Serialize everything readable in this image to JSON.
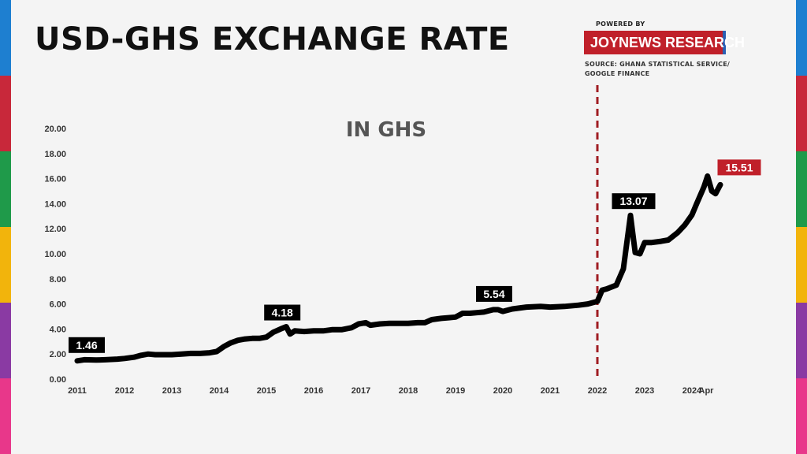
{
  "header": {
    "title": "USD-GHS EXCHANGE RATE",
    "powered_by": "POWERED BY",
    "brand": "JOYNEWS RESEARCH",
    "source_line1": "SOURCE: GHANA STATISTICAL SERVICE/",
    "source_line2": "GOOGLE FINANCE"
  },
  "colors": {
    "background": "#f4f4f4",
    "line": "#000000",
    "accent": "#c0202a",
    "brand_blue": "#2b5fb3",
    "stripes": [
      "#1e7fd0",
      "#c8283a",
      "#1f9a4a",
      "#f2b40c",
      "#8a3aa3",
      "#e8378a"
    ]
  },
  "chart_data": {
    "type": "line",
    "subtitle": "IN GHS",
    "xlabel": "",
    "ylabel": "",
    "x_ticks": [
      "2011",
      "2012",
      "2013",
      "2014",
      "2015",
      "2016",
      "2017",
      "2018",
      "2019",
      "2020",
      "2021",
      "2022",
      "2023",
      "2024",
      "Apr"
    ],
    "y_ticks": [
      "0.00",
      "2.00",
      "4.00",
      "6.00",
      "8.00",
      "10.00",
      "12.00",
      "14.00",
      "16.00",
      "18.00",
      "20.00"
    ],
    "ylim": [
      0,
      20
    ],
    "xlim": [
      2011.0,
      2024.3
    ],
    "grid": false,
    "legend": "none",
    "series": [
      {
        "x": [
          2011.0,
          2011.15,
          2011.4,
          2011.6,
          2011.85,
          2012.0,
          2012.2,
          2012.35,
          2012.5,
          2012.65,
          2012.8,
          2013.0,
          2013.2,
          2013.4,
          2013.6,
          2013.8,
          2013.95,
          2014.1,
          2014.25,
          2014.4,
          2014.55,
          2014.7,
          2014.85,
          2015.0,
          2015.15,
          2015.3,
          2015.42,
          2015.5,
          2015.6,
          2015.8,
          2016.0,
          2016.2,
          2016.4,
          2016.6,
          2016.8,
          2016.95,
          2017.1,
          2017.2,
          2017.4,
          2017.6,
          2017.8,
          2018.0,
          2018.2,
          2018.35,
          2018.5,
          2018.7,
          2018.85,
          2019.0,
          2019.15,
          2019.3,
          2019.45,
          2019.6,
          2019.8,
          2019.9,
          2020.0,
          2020.2,
          2020.5,
          2020.8,
          2021.0,
          2021.3,
          2021.6,
          2021.8,
          2022.0,
          2022.1,
          2022.2,
          2022.4,
          2022.55,
          2022.7,
          2022.8,
          2022.9,
          2023.0,
          2023.15,
          2023.35,
          2023.5,
          2023.7,
          2023.85,
          2024.0,
          2024.1,
          2024.25,
          2024.33,
          2024.42,
          2024.5,
          2024.6
        ],
        "values": [
          1.46,
          1.55,
          1.52,
          1.55,
          1.6,
          1.65,
          1.75,
          1.9,
          2.0,
          1.95,
          1.95,
          1.95,
          2.0,
          2.05,
          2.05,
          2.1,
          2.2,
          2.6,
          2.9,
          3.1,
          3.2,
          3.25,
          3.25,
          3.35,
          3.75,
          4.0,
          4.18,
          3.6,
          3.85,
          3.8,
          3.85,
          3.85,
          3.95,
          3.95,
          4.1,
          4.4,
          4.5,
          4.3,
          4.4,
          4.45,
          4.45,
          4.45,
          4.5,
          4.5,
          4.75,
          4.85,
          4.9,
          4.95,
          5.25,
          5.25,
          5.3,
          5.35,
          5.54,
          5.54,
          5.4,
          5.6,
          5.75,
          5.8,
          5.75,
          5.8,
          5.9,
          6.0,
          6.2,
          7.1,
          7.2,
          7.5,
          8.8,
          13.07,
          10.1,
          10.0,
          10.9,
          10.9,
          11.0,
          11.1,
          11.7,
          12.3,
          13.1,
          14.0,
          15.3,
          16.2,
          15.0,
          14.8,
          15.51
        ]
      }
    ],
    "annotations": [
      {
        "text": "1.46",
        "x": 2011.0,
        "y": 1.46,
        "style": "black"
      },
      {
        "text": "4.18",
        "x": 2015.42,
        "y": 4.18,
        "style": "black"
      },
      {
        "text": "5.54",
        "x": 2019.85,
        "y": 5.54,
        "style": "black"
      },
      {
        "text": "13.07",
        "x": 2022.7,
        "y": 13.07,
        "style": "black"
      },
      {
        "text": "15.51",
        "x": 2024.6,
        "y": 15.51,
        "style": "red"
      }
    ],
    "reference_line": {
      "x": 2022.0,
      "style": "dashed",
      "color": "#a01c22"
    }
  }
}
